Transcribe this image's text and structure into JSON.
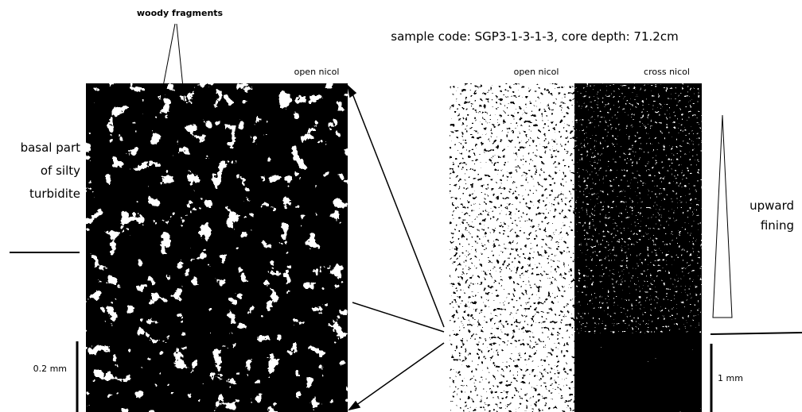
{
  "title": "sample code: SGP3-1-3-1-3, core depth: 71.2cm",
  "left_panel": {
    "annotation": "woody fragments",
    "label": "open nicol",
    "side_label": [
      "basal part",
      "of silty",
      "turbidite"
    ],
    "scale": "0.2 mm"
  },
  "right_panel": {
    "labels": [
      "open nicol",
      "cross nicol"
    ],
    "side_label": [
      "upward",
      "fining"
    ],
    "scale": "1 mm"
  }
}
